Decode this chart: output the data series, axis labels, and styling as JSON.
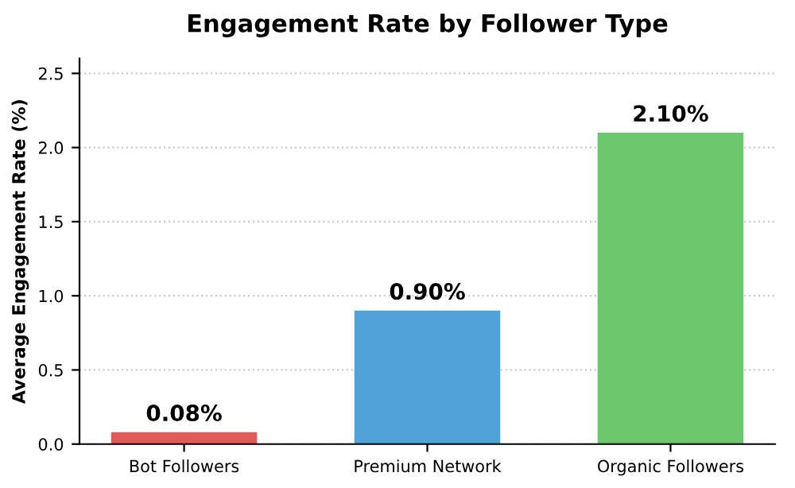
{
  "chart_data": {
    "type": "bar",
    "title": "Engagement Rate by Follower Type",
    "ylabel": "Average Engagement Rate (%)",
    "categories": [
      "Bot Followers",
      "Premium Network",
      "Organic Followers"
    ],
    "values": [
      0.08,
      0.9,
      2.1
    ],
    "colors": [
      "#e05a5a",
      "#4fa3d8",
      "#6cc86c"
    ],
    "value_labels": [
      "0.08%",
      "0.90%",
      "2.10%"
    ],
    "ylim": [
      0,
      2.6
    ],
    "yticks": [
      {
        "value": 0,
        "label": "0.0"
      },
      {
        "value": 0.5,
        "label": "0.5"
      },
      {
        "value": 1,
        "label": "1.0"
      },
      {
        "value": 1.5,
        "label": "1.5"
      },
      {
        "value": 2,
        "label": "2.0"
      },
      {
        "value": 2.5,
        "label": "2.5"
      }
    ],
    "grid": "y"
  }
}
